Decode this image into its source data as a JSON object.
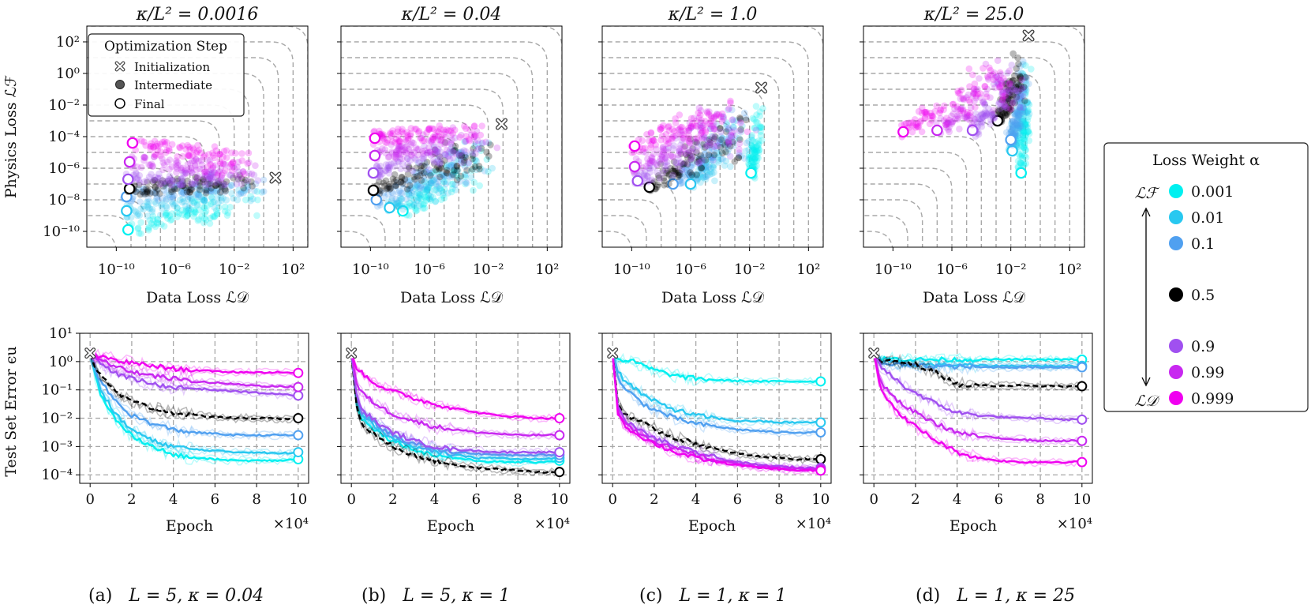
{
  "figure": {
    "colors": {
      "a0001": "#00f0f0",
      "a001": "#28c8f0",
      "a01": "#50a0f0",
      "a05": "#000000",
      "a09": "#a050f0",
      "a099": "#c828f0",
      "a0999": "#f000f0",
      "grid": "#a8a8a8"
    },
    "legend_opt": {
      "title": "Optimization Step",
      "items": [
        "Initialization",
        "Intermediate",
        "Final"
      ]
    },
    "legend_alpha": {
      "title": "Loss Weight α",
      "top_label": "ℒℱ",
      "bottom_label": "ℒ𝒟",
      "items": [
        {
          "label": "0.001",
          "color": "#00f0f0"
        },
        {
          "label": "0.01",
          "color": "#28c8f0"
        },
        {
          "label": "0.1",
          "color": "#50a0f0"
        },
        {
          "label": "0.5",
          "color": "#000000"
        },
        {
          "label": "0.9",
          "color": "#a050f0"
        },
        {
          "label": "0.99",
          "color": "#c828f0"
        },
        {
          "label": "0.999",
          "color": "#f000f0"
        }
      ]
    },
    "captions": [
      {
        "tag": "(a)",
        "text": "L = 5, κ = 0.04"
      },
      {
        "tag": "(b)",
        "text": "L = 5, κ = 1"
      },
      {
        "tag": "(c)",
        "text": "L = 1, κ = 1"
      },
      {
        "tag": "(d)",
        "text": "L = 1, κ = 25"
      }
    ]
  },
  "chart_data": [
    {
      "type": "scatter",
      "title": "κ/L² = 0.0016",
      "xlabel": "Data Loss ℒ𝒟",
      "ylabel": "Physics Loss ℒℱ",
      "xscale": "log",
      "yscale": "log",
      "xlim_exp": [
        -12,
        3
      ],
      "ylim_exp": [
        -11,
        3
      ],
      "x_ticks": [
        "10⁻¹⁰",
        "10⁻⁶",
        "10⁻²",
        "10²"
      ],
      "y_ticks": [
        "10²",
        "10⁰",
        "10⁻²",
        "10⁻⁴",
        "10⁻⁶",
        "10⁻⁸",
        "10⁻¹⁰"
      ],
      "initialization": [
        0.8,
        -6.6
      ],
      "final_points": [
        {
          "alpha": "0.001",
          "x_exp": -9.2,
          "y_exp": -9.9
        },
        {
          "alpha": "0.01",
          "x_exp": -9.3,
          "y_exp": -8.7
        },
        {
          "alpha": "0.1",
          "x_exp": -9.3,
          "y_exp": -7.8
        },
        {
          "alpha": "0.5",
          "x_exp": -9.1,
          "y_exp": -7.3
        },
        {
          "alpha": "0.9",
          "x_exp": -9.2,
          "y_exp": -6.7
        },
        {
          "alpha": "0.99",
          "x_exp": -9.1,
          "y_exp": -5.6
        },
        {
          "alpha": "0.999",
          "x_exp": -8.9,
          "y_exp": -4.4
        }
      ]
    },
    {
      "type": "scatter",
      "title": "κ/L² = 0.04",
      "xlabel": "Data Loss ℒ𝒟",
      "xscale": "log",
      "yscale": "log",
      "xlim_exp": [
        -12,
        3
      ],
      "ylim_exp": [
        -11,
        3
      ],
      "x_ticks": [
        "10⁻¹⁰",
        "10⁻⁶",
        "10⁻²",
        "10²"
      ],
      "initialization": [
        -1.1,
        -3.2
      ],
      "final_points": [
        {
          "alpha": "0.001",
          "x_exp": -7.8,
          "y_exp": -8.7
        },
        {
          "alpha": "0.01",
          "x_exp": -8.7,
          "y_exp": -8.5
        },
        {
          "alpha": "0.1",
          "x_exp": -9.6,
          "y_exp": -8.0
        },
        {
          "alpha": "0.5",
          "x_exp": -9.8,
          "y_exp": -7.4
        },
        {
          "alpha": "0.9",
          "x_exp": -9.8,
          "y_exp": -6.3
        },
        {
          "alpha": "0.99",
          "x_exp": -9.7,
          "y_exp": -5.2
        },
        {
          "alpha": "0.999",
          "x_exp": -9.7,
          "y_exp": -4.1
        }
      ]
    },
    {
      "type": "scatter",
      "title": "κ/L² = 1.0",
      "xlabel": "Data Loss ℒ𝒟",
      "xscale": "log",
      "yscale": "log",
      "xlim_exp": [
        -12,
        3
      ],
      "ylim_exp": [
        -11,
        3
      ],
      "x_ticks": [
        "10⁻¹⁰",
        "10⁻⁶",
        "10⁻²",
        "10²"
      ],
      "initialization": [
        -1.2,
        -0.9
      ],
      "final_points": [
        {
          "alpha": "0.001",
          "x_exp": -1.9,
          "y_exp": -6.3
        },
        {
          "alpha": "0.01",
          "x_exp": -6.0,
          "y_exp": -7.0
        },
        {
          "alpha": "0.1",
          "x_exp": -7.2,
          "y_exp": -7.0
        },
        {
          "alpha": "0.5",
          "x_exp": -8.8,
          "y_exp": -7.2
        },
        {
          "alpha": "0.9",
          "x_exp": -9.6,
          "y_exp": -6.8
        },
        {
          "alpha": "0.99",
          "x_exp": -9.8,
          "y_exp": -5.9
        },
        {
          "alpha": "0.999",
          "x_exp": -9.8,
          "y_exp": -4.6
        }
      ]
    },
    {
      "type": "scatter",
      "title": "κ/L² = 25.0",
      "xlabel": "Data Loss ℒ𝒟",
      "xscale": "log",
      "yscale": "log",
      "xlim_exp": [
        -12,
        3
      ],
      "ylim_exp": [
        -11,
        3
      ],
      "x_ticks": [
        "10⁻¹⁰",
        "10⁻⁶",
        "10⁻²",
        "10²"
      ],
      "initialization": [
        -0.8,
        2.4
      ],
      "final_points": [
        {
          "alpha": "0.001",
          "x_exp": -1.3,
          "y_exp": -6.3
        },
        {
          "alpha": "0.01",
          "x_exp": -1.9,
          "y_exp": -4.9
        },
        {
          "alpha": "0.1",
          "x_exp": -2.0,
          "y_exp": -4.2
        },
        {
          "alpha": "0.5",
          "x_exp": -2.9,
          "y_exp": -3.0
        },
        {
          "alpha": "0.9",
          "x_exp": -4.6,
          "y_exp": -3.6
        },
        {
          "alpha": "0.99",
          "x_exp": -7.0,
          "y_exp": -3.6
        },
        {
          "alpha": "0.999",
          "x_exp": -9.3,
          "y_exp": -3.7
        }
      ]
    },
    {
      "type": "line",
      "ylabel": "Test Set Error ϵu",
      "xlabel": "Epoch",
      "x_multiplier": "×10⁴",
      "yscale": "log",
      "xlim": [
        -0.5,
        10.5
      ],
      "ylim_exp": [
        -4.3,
        1.0
      ],
      "x_ticks": [
        "0",
        "2",
        "4",
        "6",
        "8",
        "10"
      ],
      "y_ticks": [
        "10¹",
        "10⁰",
        "10⁻¹",
        "10⁻²",
        "10⁻³",
        "10⁻⁴"
      ],
      "x": [
        0,
        0.25,
        0.5,
        1,
        1.5,
        2,
        3,
        4,
        5,
        6,
        7,
        8,
        9,
        10
      ],
      "series": [
        {
          "name": "0.001",
          "y_exp": [
            0.3,
            -0.5,
            -1.2,
            -1.8,
            -2.3,
            -2.6,
            -3.0,
            -3.3,
            -3.4,
            -3.45,
            -3.5,
            -3.5,
            -3.5,
            -3.45
          ]
        },
        {
          "name": "0.01",
          "y_exp": [
            0.3,
            -0.4,
            -1.0,
            -1.6,
            -2.1,
            -2.4,
            -2.8,
            -3.0,
            -3.1,
            -3.15,
            -3.2,
            -3.2,
            -3.25,
            -3.2
          ]
        },
        {
          "name": "0.1",
          "y_exp": [
            0.3,
            -0.3,
            -0.7,
            -1.2,
            -1.6,
            -1.9,
            -2.2,
            -2.4,
            -2.5,
            -2.55,
            -2.6,
            -2.6,
            -2.6,
            -2.6
          ]
        },
        {
          "name": "0.5",
          "y_exp": [
            0.3,
            -0.2,
            -0.5,
            -0.9,
            -1.2,
            -1.4,
            -1.65,
            -1.8,
            -1.9,
            -1.95,
            -2.0,
            -2.0,
            -2.02,
            -2.0
          ]
        },
        {
          "name": "0.9",
          "y_exp": [
            0.3,
            0.1,
            -0.1,
            -0.3,
            -0.5,
            -0.6,
            -0.8,
            -0.9,
            -0.95,
            -1.0,
            -1.05,
            -1.1,
            -1.15,
            -1.2
          ]
        },
        {
          "name": "0.99",
          "y_exp": [
            0.3,
            0.15,
            0.05,
            -0.1,
            -0.25,
            -0.35,
            -0.5,
            -0.6,
            -0.7,
            -0.75,
            -0.8,
            -0.85,
            -0.88,
            -0.9
          ]
        },
        {
          "name": "0.999",
          "y_exp": [
            0.3,
            0.2,
            0.15,
            0.1,
            0.0,
            -0.05,
            -0.15,
            -0.25,
            -0.3,
            -0.35,
            -0.37,
            -0.38,
            -0.38,
            -0.4
          ]
        }
      ]
    },
    {
      "type": "line",
      "xlabel": "Epoch",
      "x_multiplier": "×10⁴",
      "yscale": "log",
      "xlim": [
        -0.5,
        10.5
      ],
      "ylim_exp": [
        -4.3,
        1.0
      ],
      "x_ticks": [
        "0",
        "2",
        "4",
        "6",
        "8",
        "10"
      ],
      "x": [
        0,
        0.25,
        0.5,
        1,
        1.5,
        2,
        3,
        4,
        5,
        6,
        7,
        8,
        9,
        10
      ],
      "series": [
        {
          "name": "0.001",
          "y_exp": [
            0.3,
            -1.5,
            -2.0,
            -2.3,
            -2.6,
            -2.8,
            -3.1,
            -3.3,
            -3.4,
            -3.5,
            -3.55,
            -3.55,
            -3.55,
            -3.5
          ]
        },
        {
          "name": "0.01",
          "y_exp": [
            0.3,
            -1.4,
            -1.9,
            -2.2,
            -2.5,
            -2.7,
            -3.0,
            -3.2,
            -3.3,
            -3.4,
            -3.4,
            -3.45,
            -3.45,
            -3.4
          ]
        },
        {
          "name": "0.1",
          "y_exp": [
            0.3,
            -1.3,
            -1.8,
            -2.1,
            -2.4,
            -2.6,
            -2.9,
            -3.1,
            -3.2,
            -3.25,
            -3.3,
            -3.3,
            -3.3,
            -3.3
          ]
        },
        {
          "name": "0.5",
          "y_exp": [
            0.3,
            -1.6,
            -2.2,
            -2.5,
            -2.8,
            -3.0,
            -3.3,
            -3.5,
            -3.65,
            -3.75,
            -3.8,
            -3.85,
            -3.9,
            -3.9
          ]
        },
        {
          "name": "0.9",
          "y_exp": [
            0.3,
            -1.2,
            -1.7,
            -2.0,
            -2.3,
            -2.5,
            -2.8,
            -3.0,
            -3.1,
            -3.15,
            -3.2,
            -3.2,
            -3.2,
            -3.2
          ]
        },
        {
          "name": "0.99",
          "y_exp": [
            0.3,
            -0.8,
            -1.1,
            -1.4,
            -1.65,
            -1.85,
            -2.1,
            -2.3,
            -2.4,
            -2.5,
            -2.55,
            -2.6,
            -2.6,
            -2.6
          ]
        },
        {
          "name": "0.999",
          "y_exp": [
            0.3,
            -0.2,
            -0.4,
            -0.7,
            -0.9,
            -1.05,
            -1.3,
            -1.5,
            -1.65,
            -1.8,
            -1.9,
            -1.95,
            -2.0,
            -2.0
          ]
        }
      ]
    },
    {
      "type": "line",
      "xlabel": "Epoch",
      "x_multiplier": "×10⁴",
      "yscale": "log",
      "xlim": [
        -0.5,
        10.5
      ],
      "ylim_exp": [
        -4.3,
        1.0
      ],
      "x_ticks": [
        "0",
        "2",
        "4",
        "6",
        "8",
        "10"
      ],
      "x": [
        0,
        0.25,
        0.5,
        1,
        1.5,
        2,
        3,
        4,
        5,
        6,
        7,
        8,
        9,
        10
      ],
      "series": [
        {
          "name": "0.001",
          "y_exp": [
            0.3,
            0.1,
            0.05,
            0.0,
            -0.15,
            -0.3,
            -0.5,
            -0.6,
            -0.65,
            -0.68,
            -0.7,
            -0.7,
            -0.7,
            -0.7
          ]
        },
        {
          "name": "0.01",
          "y_exp": [
            0.3,
            -0.3,
            -0.6,
            -0.9,
            -1.2,
            -1.4,
            -1.7,
            -1.9,
            -2.0,
            -2.1,
            -2.1,
            -2.15,
            -2.15,
            -2.15
          ]
        },
        {
          "name": "0.1",
          "y_exp": [
            0.3,
            -0.5,
            -0.9,
            -1.2,
            -1.5,
            -1.7,
            -2.0,
            -2.2,
            -2.3,
            -2.4,
            -2.45,
            -2.5,
            -2.5,
            -2.5
          ]
        },
        {
          "name": "0.5",
          "y_exp": [
            0.3,
            -1.5,
            -1.8,
            -2.0,
            -2.2,
            -2.4,
            -2.7,
            -2.9,
            -3.1,
            -3.25,
            -3.35,
            -3.4,
            -3.45,
            -3.45
          ]
        },
        {
          "name": "0.9",
          "y_exp": [
            0.3,
            -1.6,
            -2.0,
            -2.3,
            -2.5,
            -2.7,
            -3.0,
            -3.2,
            -3.4,
            -3.55,
            -3.65,
            -3.7,
            -3.75,
            -3.75
          ]
        },
        {
          "name": "0.99",
          "y_exp": [
            0.3,
            -1.7,
            -2.1,
            -2.4,
            -2.6,
            -2.8,
            -3.1,
            -3.3,
            -3.5,
            -3.6,
            -3.7,
            -3.75,
            -3.8,
            -3.8
          ]
        },
        {
          "name": "0.999",
          "y_exp": [
            0.3,
            -1.8,
            -2.2,
            -2.5,
            -2.7,
            -2.9,
            -3.2,
            -3.4,
            -3.55,
            -3.65,
            -3.75,
            -3.8,
            -3.85,
            -3.85
          ]
        }
      ]
    },
    {
      "type": "line",
      "xlabel": "Epoch",
      "x_multiplier": "×10⁴",
      "yscale": "log",
      "xlim": [
        -0.5,
        10.5
      ],
      "ylim_exp": [
        -4.3,
        1.0
      ],
      "x_ticks": [
        "0",
        "2",
        "4",
        "6",
        "8",
        "10"
      ],
      "x": [
        0,
        0.25,
        0.5,
        1,
        1.5,
        2,
        3,
        4,
        5,
        6,
        7,
        8,
        9,
        10
      ],
      "series": [
        {
          "name": "0.001",
          "y_exp": [
            0.3,
            0.1,
            0.1,
            0.1,
            0.08,
            0.07,
            0.07,
            0.07,
            0.07,
            0.07,
            0.07,
            0.07,
            0.07,
            0.07
          ]
        },
        {
          "name": "0.01",
          "y_exp": [
            0.3,
            0.05,
            0.0,
            -0.05,
            -0.1,
            -0.1,
            -0.12,
            -0.13,
            -0.14,
            -0.15,
            -0.15,
            -0.15,
            -0.15,
            -0.15
          ]
        },
        {
          "name": "0.1",
          "y_exp": [
            0.3,
            0.0,
            -0.05,
            -0.1,
            -0.12,
            -0.14,
            -0.16,
            -0.18,
            -0.2,
            -0.2,
            -0.2,
            -0.2,
            -0.2,
            -0.2
          ]
        },
        {
          "name": "0.5",
          "y_exp": [
            0.3,
            0.05,
            0.0,
            0.0,
            -0.05,
            -0.1,
            -0.4,
            -0.8,
            -0.85,
            -0.85,
            -0.85,
            -0.87,
            -0.87,
            -0.87
          ]
        },
        {
          "name": "0.9",
          "y_exp": [
            0.3,
            -0.1,
            -0.3,
            -0.6,
            -0.9,
            -1.1,
            -1.5,
            -1.8,
            -1.9,
            -1.95,
            -2.0,
            -2.0,
            -2.05,
            -2.05
          ]
        },
        {
          "name": "0.99",
          "y_exp": [
            0.3,
            -0.5,
            -0.9,
            -1.3,
            -1.6,
            -1.8,
            -2.2,
            -2.5,
            -2.65,
            -2.7,
            -2.75,
            -2.8,
            -2.8,
            -2.8
          ]
        },
        {
          "name": "0.999",
          "y_exp": [
            0.3,
            -0.7,
            -1.2,
            -1.7,
            -2.0,
            -2.3,
            -2.8,
            -3.2,
            -3.4,
            -3.5,
            -3.55,
            -3.55,
            -3.55,
            -3.55
          ]
        }
      ]
    }
  ]
}
